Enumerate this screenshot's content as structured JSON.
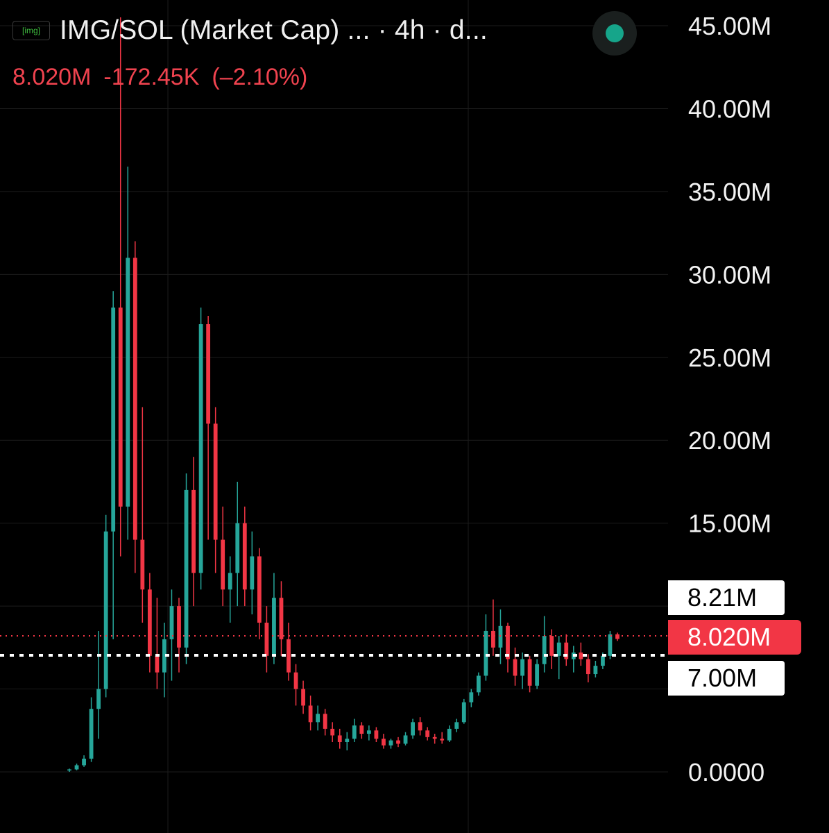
{
  "header": {
    "logo_text": "[img]",
    "title": "IMG/SOL (Market Cap) ... · 4h · d...",
    "status_icon": "live-status-dot-icon",
    "last_value": "8.020M",
    "change_abs": "-172.45K",
    "change_pct": "(–2.10%)"
  },
  "colors": {
    "background": "#000000",
    "up": "#26a69a",
    "down": "#f23645",
    "grid": "#1c1c1c",
    "status": "#16a58a"
  },
  "price_tags": {
    "upper": "8.21M",
    "current": "8.020M",
    "lower": "7.00M"
  },
  "chart_data": {
    "type": "candlestick",
    "title": "IMG/SOL (Market Cap) ... · 4h · d...",
    "interval": "4h",
    "y_axis_labels": [
      "45.00M",
      "40.00M",
      "35.00M",
      "30.00M",
      "25.00M",
      "20.00M",
      "15.00M",
      "0.0000"
    ],
    "y_ticks": [
      45,
      40,
      35,
      30,
      25,
      20,
      15,
      0
    ],
    "ylim": [
      0,
      46
    ],
    "unit": "M",
    "grid": true,
    "horizontal_lines": [
      {
        "label": "8.21M",
        "value": 8.21,
        "style": "dotted",
        "color": "#ffffff"
      },
      {
        "label": "8.020M",
        "value": 8.02,
        "style": "dotted",
        "color": "#f23645"
      },
      {
        "label": "7.00M",
        "value": 7.0,
        "style": "dotted",
        "color": "#ffffff"
      }
    ],
    "series": [
      {
        "points": [
          {
            "o": 0.1,
            "h": 0.2,
            "l": 0.0,
            "c": 0.15
          },
          {
            "o": 0.15,
            "h": 0.5,
            "l": 0.1,
            "c": 0.4
          },
          {
            "o": 0.4,
            "h": 1.0,
            "l": 0.3,
            "c": 0.8
          },
          {
            "o": 0.8,
            "h": 4.5,
            "l": 0.6,
            "c": 3.8
          },
          {
            "o": 3.8,
            "h": 8.5,
            "l": 2.0,
            "c": 5.0
          },
          {
            "o": 5.0,
            "h": 15.5,
            "l": 4.5,
            "c": 14.5
          },
          {
            "o": 14.5,
            "h": 29.0,
            "l": 8.0,
            "c": 28.0
          },
          {
            "o": 28.0,
            "h": 45.5,
            "l": 13.0,
            "c": 16.0
          },
          {
            "o": 16.0,
            "h": 36.5,
            "l": 14.0,
            "c": 31.0
          },
          {
            "o": 31.0,
            "h": 32.0,
            "l": 12.0,
            "c": 14.0
          },
          {
            "o": 14.0,
            "h": 22.0,
            "l": 9.0,
            "c": 11.0
          },
          {
            "o": 11.0,
            "h": 12.0,
            "l": 6.0,
            "c": 7.0
          },
          {
            "o": 7.0,
            "h": 10.5,
            "l": 5.0,
            "c": 6.0
          },
          {
            "o": 6.0,
            "h": 9.0,
            "l": 4.5,
            "c": 8.0
          },
          {
            "o": 8.0,
            "h": 11.0,
            "l": 5.5,
            "c": 10.0
          },
          {
            "o": 10.0,
            "h": 10.5,
            "l": 6.0,
            "c": 7.5
          },
          {
            "o": 7.5,
            "h": 18.0,
            "l": 6.5,
            "c": 17.0
          },
          {
            "o": 17.0,
            "h": 19.0,
            "l": 10.0,
            "c": 12.0
          },
          {
            "o": 12.0,
            "h": 28.0,
            "l": 11.0,
            "c": 27.0
          },
          {
            "o": 27.0,
            "h": 27.5,
            "l": 14.0,
            "c": 21.0
          },
          {
            "o": 21.0,
            "h": 22.0,
            "l": 12.0,
            "c": 14.0
          },
          {
            "o": 14.0,
            "h": 16.0,
            "l": 10.0,
            "c": 11.0
          },
          {
            "o": 11.0,
            "h": 13.0,
            "l": 9.0,
            "c": 12.0
          },
          {
            "o": 12.0,
            "h": 17.5,
            "l": 10.0,
            "c": 15.0
          },
          {
            "o": 15.0,
            "h": 16.0,
            "l": 10.0,
            "c": 11.0
          },
          {
            "o": 11.0,
            "h": 14.5,
            "l": 9.5,
            "c": 13.0
          },
          {
            "o": 13.0,
            "h": 13.5,
            "l": 8.0,
            "c": 9.0
          },
          {
            "o": 9.0,
            "h": 10.0,
            "l": 6.0,
            "c": 7.0
          },
          {
            "o": 7.0,
            "h": 12.0,
            "l": 6.5,
            "c": 10.5
          },
          {
            "o": 10.5,
            "h": 11.5,
            "l": 7.0,
            "c": 8.0
          },
          {
            "o": 8.0,
            "h": 9.0,
            "l": 5.5,
            "c": 6.0
          },
          {
            "o": 6.0,
            "h": 6.5,
            "l": 4.0,
            "c": 5.0
          },
          {
            "o": 5.0,
            "h": 5.5,
            "l": 3.5,
            "c": 4.0
          },
          {
            "o": 4.0,
            "h": 4.6,
            "l": 2.5,
            "c": 3.0
          },
          {
            "o": 3.0,
            "h": 4.0,
            "l": 2.5,
            "c": 3.5
          },
          {
            "o": 3.5,
            "h": 3.8,
            "l": 2.2,
            "c": 2.6
          },
          {
            "o": 2.6,
            "h": 3.0,
            "l": 1.8,
            "c": 2.2
          },
          {
            "o": 2.2,
            "h": 2.6,
            "l": 1.4,
            "c": 1.8
          },
          {
            "o": 1.8,
            "h": 2.4,
            "l": 1.3,
            "c": 2.0
          },
          {
            "o": 2.0,
            "h": 3.2,
            "l": 1.8,
            "c": 2.8
          },
          {
            "o": 2.8,
            "h": 3.0,
            "l": 2.0,
            "c": 2.3
          },
          {
            "o": 2.3,
            "h": 2.8,
            "l": 1.9,
            "c": 2.5
          },
          {
            "o": 2.5,
            "h": 2.7,
            "l": 1.8,
            "c": 2.0
          },
          {
            "o": 2.0,
            "h": 2.3,
            "l": 1.4,
            "c": 1.6
          },
          {
            "o": 1.6,
            "h": 2.0,
            "l": 1.4,
            "c": 1.9
          },
          {
            "o": 1.9,
            "h": 2.1,
            "l": 1.5,
            "c": 1.7
          },
          {
            "o": 1.7,
            "h": 2.4,
            "l": 1.6,
            "c": 2.2
          },
          {
            "o": 2.2,
            "h": 3.2,
            "l": 2.0,
            "c": 3.0
          },
          {
            "o": 3.0,
            "h": 3.3,
            "l": 2.2,
            "c": 2.5
          },
          {
            "o": 2.5,
            "h": 2.7,
            "l": 1.9,
            "c": 2.1
          },
          {
            "o": 2.1,
            "h": 2.3,
            "l": 1.7,
            "c": 2.0
          },
          {
            "o": 2.0,
            "h": 2.4,
            "l": 1.7,
            "c": 1.9
          },
          {
            "o": 1.9,
            "h": 2.8,
            "l": 1.8,
            "c": 2.6
          },
          {
            "o": 2.6,
            "h": 3.2,
            "l": 2.4,
            "c": 3.0
          },
          {
            "o": 3.0,
            "h": 4.4,
            "l": 2.9,
            "c": 4.2
          },
          {
            "o": 4.2,
            "h": 5.0,
            "l": 3.9,
            "c": 4.8
          },
          {
            "o": 4.8,
            "h": 6.0,
            "l": 4.6,
            "c": 5.8
          },
          {
            "o": 5.8,
            "h": 9.5,
            "l": 5.5,
            "c": 8.5
          },
          {
            "o": 8.5,
            "h": 10.4,
            "l": 7.0,
            "c": 7.5
          },
          {
            "o": 7.5,
            "h": 9.8,
            "l": 6.5,
            "c": 8.8
          },
          {
            "o": 8.8,
            "h": 9.0,
            "l": 6.0,
            "c": 6.8
          },
          {
            "o": 6.8,
            "h": 7.5,
            "l": 5.2,
            "c": 5.8
          },
          {
            "o": 5.8,
            "h": 7.2,
            "l": 5.0,
            "c": 6.8
          },
          {
            "o": 6.8,
            "h": 7.0,
            "l": 4.8,
            "c": 5.2
          },
          {
            "o": 5.2,
            "h": 6.8,
            "l": 5.0,
            "c": 6.5
          },
          {
            "o": 6.5,
            "h": 9.4,
            "l": 6.0,
            "c": 8.2
          },
          {
            "o": 8.2,
            "h": 8.6,
            "l": 6.2,
            "c": 7.0
          },
          {
            "o": 7.0,
            "h": 8.2,
            "l": 5.6,
            "c": 7.8
          },
          {
            "o": 7.8,
            "h": 8.3,
            "l": 6.4,
            "c": 6.8
          },
          {
            "o": 6.8,
            "h": 7.6,
            "l": 6.0,
            "c": 7.2
          },
          {
            "o": 7.2,
            "h": 7.8,
            "l": 6.4,
            "c": 6.8
          },
          {
            "o": 6.8,
            "h": 7.1,
            "l": 5.4,
            "c": 5.9
          },
          {
            "o": 5.9,
            "h": 6.7,
            "l": 5.7,
            "c": 6.4
          },
          {
            "o": 6.4,
            "h": 7.2,
            "l": 6.2,
            "c": 7.0
          },
          {
            "o": 7.0,
            "h": 8.5,
            "l": 6.8,
            "c": 8.3
          },
          {
            "o": 8.3,
            "h": 8.4,
            "l": 7.9,
            "c": 8.02
          }
        ]
      }
    ]
  }
}
